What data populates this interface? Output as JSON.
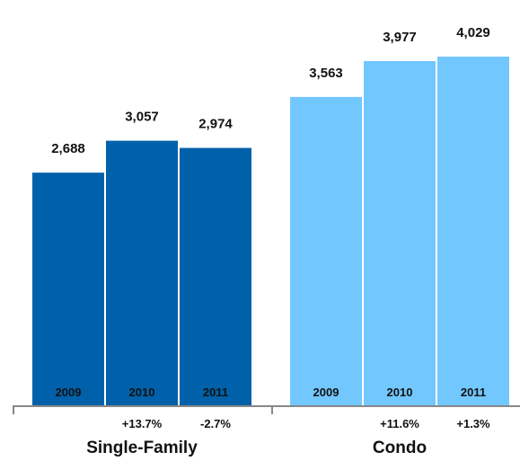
{
  "chart_data": {
    "type": "bar",
    "groups": [
      {
        "name": "Single-Family",
        "color": "#0061AA",
        "categories": [
          "2009",
          "2010",
          "2011"
        ],
        "values": [
          2688,
          3057,
          2974
        ],
        "value_labels": [
          "2,688",
          "3,057",
          "2,974"
        ],
        "changes": [
          "",
          "+13.7%",
          "-2.7%"
        ]
      },
      {
        "name": "Condo",
        "color": "#72C7FF",
        "categories": [
          "2009",
          "2010",
          "2011"
        ],
        "values": [
          3563,
          3977,
          4029
        ],
        "value_labels": [
          "3,563",
          "3,977",
          "4,029"
        ],
        "changes": [
          "",
          "+11.6%",
          "+1.3%"
        ]
      }
    ],
    "ylim": [
      0,
      4600
    ],
    "grid": false,
    "legend": "none"
  }
}
